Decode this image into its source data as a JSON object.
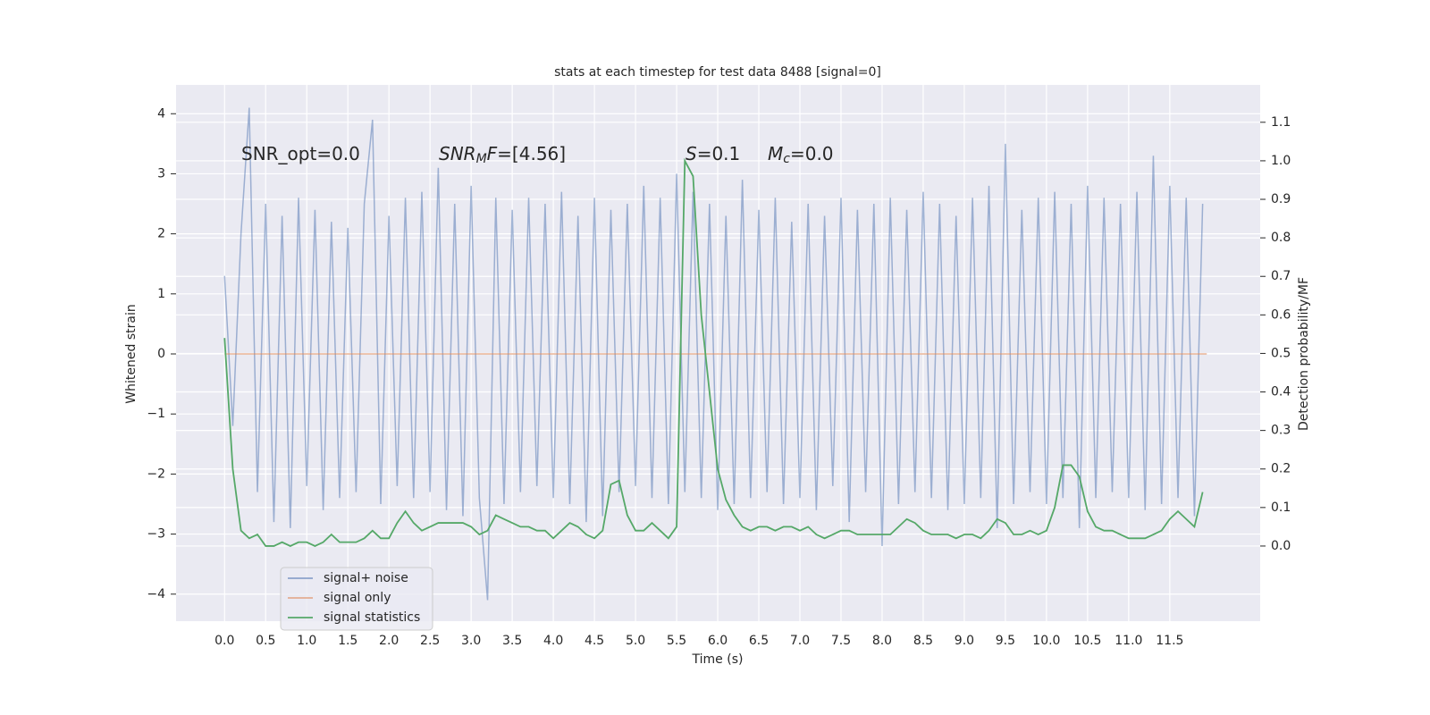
{
  "chart_data": {
    "type": "line",
    "title": "stats at each timestep for test data 8488 [signal=0]",
    "xlabel": "Time (s)",
    "ylabel": "Whitened strain",
    "y2label": "Detection probability/MF",
    "annotations": [
      [
        {
          "text": "SNR_opt=0.0"
        }
      ],
      [
        {
          "text": "SNR",
          "italic": true
        },
        {
          "text": "M",
          "italic": true,
          "sub": true
        },
        {
          "text": "F",
          "italic": true
        },
        {
          "text": "=[4.56]"
        }
      ],
      [
        {
          "text": "S",
          "italic": true
        },
        {
          "text": "=0.1"
        }
      ],
      [
        {
          "text": "M",
          "italic": true
        },
        {
          "text": "c",
          "italic": true,
          "sub": true
        },
        {
          "text": "=0.0"
        }
      ]
    ],
    "x": [
      0.0,
      0.1,
      0.2,
      0.3,
      0.4,
      0.5,
      0.6,
      0.7,
      0.8,
      0.9,
      1.0,
      1.1,
      1.2,
      1.3,
      1.4,
      1.5,
      1.6,
      1.7,
      1.8,
      1.9,
      2.0,
      2.1,
      2.2,
      2.3,
      2.4,
      2.5,
      2.6,
      2.7,
      2.8,
      2.9,
      3.0,
      3.1,
      3.2,
      3.3,
      3.4,
      3.5,
      3.6,
      3.7,
      3.8,
      3.9,
      4.0,
      4.1,
      4.2,
      4.3,
      4.4,
      4.5,
      4.6,
      4.7,
      4.8,
      4.9,
      5.0,
      5.1,
      5.2,
      5.3,
      5.4,
      5.5,
      5.6,
      5.7,
      5.8,
      5.9,
      6.0,
      6.1,
      6.2,
      6.3,
      6.4,
      6.5,
      6.6,
      6.7,
      6.8,
      6.9,
      7.0,
      7.1,
      7.2,
      7.3,
      7.4,
      7.5,
      7.6,
      7.7,
      7.8,
      7.9,
      8.0,
      8.1,
      8.2,
      8.3,
      8.4,
      8.5,
      8.6,
      8.7,
      8.8,
      8.9,
      9.0,
      9.1,
      9.2,
      9.3,
      9.4,
      9.5,
      9.6,
      9.7,
      9.8,
      9.9,
      10.0,
      10.1,
      10.2,
      10.3,
      10.4,
      10.5,
      10.6,
      10.7,
      10.8,
      10.9,
      11.0,
      11.1,
      11.2,
      11.3,
      11.4,
      11.5,
      11.6,
      11.7,
      11.8,
      11.9
    ],
    "series": [
      {
        "name": "signal+ noise",
        "color": "#4c72b0",
        "values": [
          1.3,
          -1.2,
          2.0,
          4.1,
          -2.3,
          2.5,
          -2.8,
          2.3,
          -2.9,
          2.6,
          -2.2,
          2.4,
          -2.6,
          2.2,
          -2.4,
          2.1,
          -2.3,
          2.5,
          3.9,
          -2.5,
          2.3,
          -2.2,
          2.6,
          -2.4,
          2.7,
          -2.3,
          3.1,
          -2.6,
          2.5,
          -2.7,
          2.8,
          -2.4,
          -4.1,
          2.6,
          -2.5,
          2.4,
          -2.3,
          2.6,
          -2.2,
          2.5,
          -2.4,
          2.7,
          -2.5,
          2.3,
          -2.8,
          2.6,
          -2.7,
          2.4,
          -2.3,
          2.5,
          -2.2,
          2.8,
          -2.4,
          2.6,
          -2.5,
          3.0,
          -2.3,
          2.7,
          -2.4,
          2.5,
          -2.6,
          2.3,
          -2.5,
          2.9,
          -2.4,
          2.4,
          -2.3,
          2.6,
          -2.5,
          2.2,
          -2.4,
          2.5,
          -2.6,
          2.3,
          -2.2,
          2.6,
          -2.8,
          2.4,
          -2.3,
          2.5,
          -3.2,
          2.6,
          -2.5,
          2.4,
          -2.3,
          2.7,
          -2.4,
          2.5,
          -2.6,
          2.3,
          -2.5,
          2.6,
          -2.4,
          2.8,
          -2.9,
          3.5,
          -2.5,
          2.4,
          -2.3,
          2.6,
          -2.5,
          2.7,
          -2.4,
          2.5,
          -2.9,
          2.8,
          -2.4,
          2.6,
          -2.3,
          2.5,
          -2.4,
          2.7,
          -2.6,
          3.3,
          -2.5,
          2.8,
          -2.4,
          2.6,
          -2.7,
          2.5
        ]
      },
      {
        "name": "signal only",
        "color": "#dd8452",
        "x": [
          0.0,
          11.95
        ],
        "values": [
          0,
          0
        ]
      },
      {
        "name": "signal statistics",
        "color": "#55a868",
        "axis": "y2",
        "values": [
          0.54,
          0.2,
          0.04,
          0.02,
          0.03,
          0.0,
          0.0,
          0.01,
          0.0,
          0.01,
          0.01,
          0.0,
          0.01,
          0.03,
          0.01,
          0.01,
          0.01,
          0.02,
          0.04,
          0.02,
          0.02,
          0.06,
          0.09,
          0.06,
          0.04,
          0.05,
          0.06,
          0.06,
          0.06,
          0.06,
          0.05,
          0.03,
          0.04,
          0.08,
          0.07,
          0.06,
          0.05,
          0.05,
          0.04,
          0.04,
          0.02,
          0.04,
          0.06,
          0.05,
          0.03,
          0.02,
          0.04,
          0.16,
          0.17,
          0.08,
          0.04,
          0.04,
          0.06,
          0.04,
          0.02,
          0.05,
          1.0,
          0.96,
          0.6,
          0.4,
          0.2,
          0.12,
          0.08,
          0.05,
          0.04,
          0.05,
          0.05,
          0.04,
          0.05,
          0.05,
          0.04,
          0.05,
          0.03,
          0.02,
          0.03,
          0.04,
          0.04,
          0.03,
          0.03,
          0.03,
          0.03,
          0.03,
          0.05,
          0.07,
          0.06,
          0.04,
          0.03,
          0.03,
          0.03,
          0.02,
          0.03,
          0.03,
          0.02,
          0.04,
          0.07,
          0.06,
          0.03,
          0.03,
          0.04,
          0.03,
          0.04,
          0.1,
          0.21,
          0.21,
          0.18,
          0.09,
          0.05,
          0.04,
          0.04,
          0.03,
          0.02,
          0.02,
          0.02,
          0.03,
          0.04,
          0.07,
          0.09,
          0.07,
          0.05,
          0.14
        ]
      }
    ],
    "xlim": [
      -0.59,
      12.6
    ],
    "xticks": [
      {
        "value": 0,
        "label": "0.0"
      },
      0.5,
      {
        "value": 1,
        "label": "1.0"
      },
      1.5,
      {
        "value": 2,
        "label": "2.0"
      },
      2.5,
      {
        "value": 3,
        "label": "3.0"
      },
      3.5,
      {
        "value": 4,
        "label": "4.0"
      },
      4.5,
      {
        "value": 5,
        "label": "5.0"
      },
      5.5,
      {
        "value": 6,
        "label": "6.0"
      },
      6.5,
      {
        "value": 7,
        "label": "7.0"
      },
      7.5,
      {
        "value": 8,
        "label": "8.0"
      },
      8.5,
      {
        "value": 9,
        "label": "9.0"
      },
      9.5,
      {
        "value": 10,
        "label": "10.0"
      },
      10.5,
      {
        "value": 11,
        "label": "11.0"
      },
      11.5
    ],
    "ylim": [
      -4.45,
      4.48
    ],
    "yticks": [
      {
        "value": -4,
        "label": "−4"
      },
      {
        "value": -3,
        "label": "−3"
      },
      {
        "value": -2,
        "label": "−2"
      },
      {
        "value": -1,
        "label": "−1"
      },
      0,
      1,
      2,
      3,
      4
    ],
    "y2lim": [
      -0.195,
      1.197
    ],
    "y2ticks": [
      {
        "value": 0,
        "label": "0.0"
      },
      0.1,
      0.2,
      0.3,
      0.4,
      0.5,
      0.6,
      0.7,
      0.8,
      0.9,
      {
        "value": 1,
        "label": "1.0"
      },
      1.1
    ],
    "grid": true,
    "legend": "lower left"
  }
}
